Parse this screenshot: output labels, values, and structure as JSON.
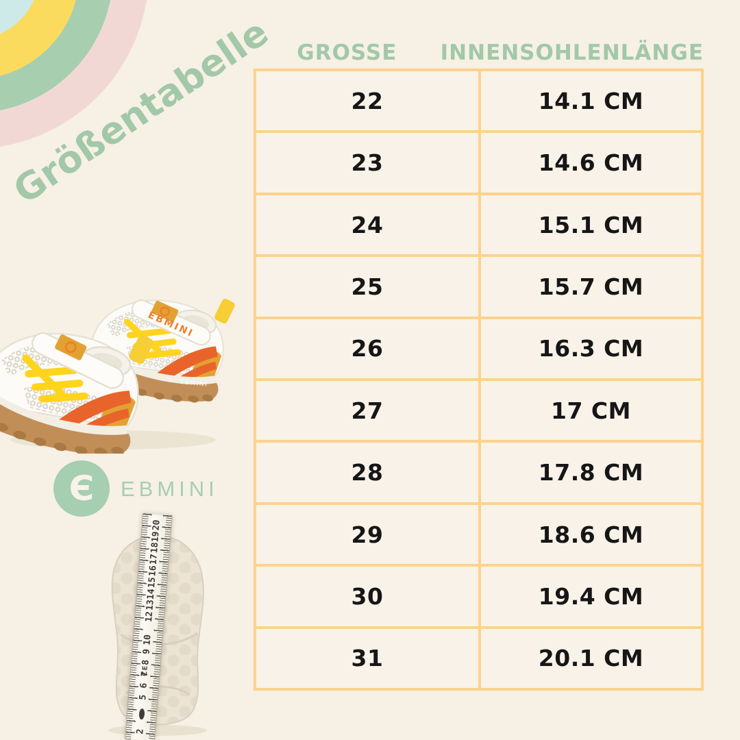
{
  "page": {
    "background_color": "#f6f0e5"
  },
  "title": {
    "text": "Größentabelle",
    "color": "#a2c8a8"
  },
  "decor": {
    "rainbow_icon_colors": [
      "#cdeae8",
      "#fbdb5e",
      "#a8ceb0",
      "#f2d8d5"
    ]
  },
  "size_table": {
    "border_color": "#fcd28c",
    "headers": {
      "size": "GROSSE",
      "insole_length": "INNENSOHLENLÄNGE"
    },
    "rows": [
      {
        "size": "22",
        "insole_length": "14.1 CM"
      },
      {
        "size": "23",
        "insole_length": "14.6 CM"
      },
      {
        "size": "24",
        "insole_length": "15.1 CM"
      },
      {
        "size": "25",
        "insole_length": "15.7 CM"
      },
      {
        "size": "26",
        "insole_length": "16.3 CM"
      },
      {
        "size": "27",
        "insole_length": "17 CM"
      },
      {
        "size": "28",
        "insole_length": "17.8 CM"
      },
      {
        "size": "29",
        "insole_length": "18.6 CM"
      },
      {
        "size": "30",
        "insole_length": "19.4 CM"
      },
      {
        "size": "31",
        "insole_length": "20.1 CM"
      }
    ]
  },
  "brand": {
    "name": "EBMINI",
    "mark_glyph": "Є",
    "color": "#a6ceb1"
  },
  "product_photo": {
    "strap_label": "EBMINI",
    "sole_label": "EBMINI",
    "lace_color": "#ffd41c",
    "accent_orange": "#e9642b",
    "accent_mustard": "#e2a233",
    "sole_color": "#c28e58"
  },
  "insole_photo": {
    "ruler_numbers": [
      "20",
      "19",
      "18",
      "17",
      "16",
      "15",
      "14",
      "13",
      "12",
      "10",
      "9",
      "8",
      "7",
      "6",
      "5",
      "2"
    ],
    "ce_mark": "CE"
  }
}
